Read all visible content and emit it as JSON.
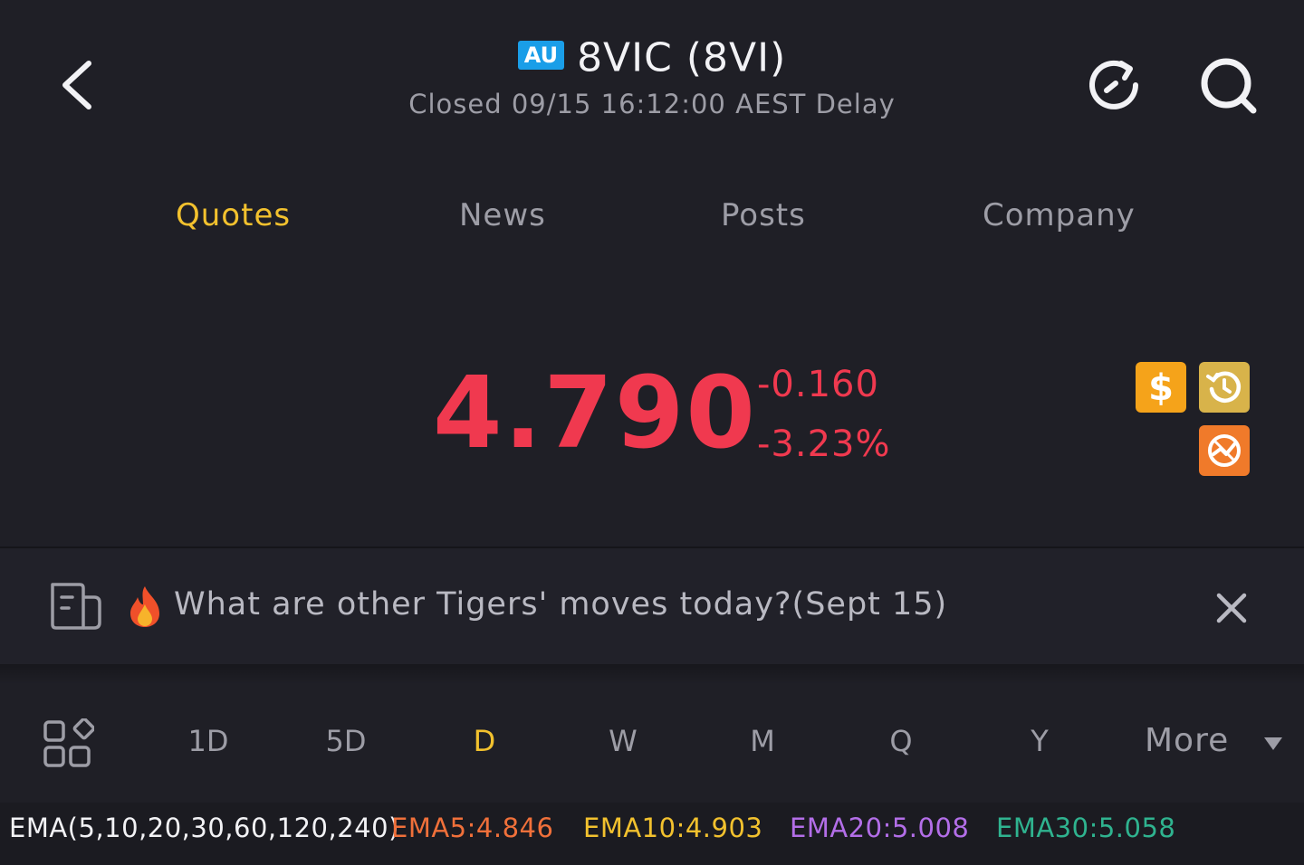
{
  "header": {
    "market_badge": "AU",
    "title": "8VIC (8VI)",
    "status": "Closed 09/15 16:12:00 AEST Delay",
    "back_icon": "chevron-left-icon",
    "refresh_icon": "refresh-icon",
    "search_icon": "search-icon"
  },
  "tabs": [
    {
      "label": "Quotes",
      "active": true
    },
    {
      "label": "News",
      "active": false
    },
    {
      "label": "Posts",
      "active": false
    },
    {
      "label": "Company",
      "active": false
    }
  ],
  "quote": {
    "price": "4.790",
    "change": "-0.160",
    "change_pct": "-3.23%",
    "color_down": "#f0394f"
  },
  "quick_actions": [
    {
      "icon": "dollar-icon",
      "color": "#f5a31a"
    },
    {
      "icon": "history-icon",
      "color": "#d8b34a"
    },
    {
      "icon": "chart-analysis-icon",
      "color": "#f07a2a"
    }
  ],
  "banner": {
    "text": "What are other Tigers' moves today?(Sept 15)",
    "doc_icon": "document-icon",
    "fire_icon": "fire-icon",
    "close_icon": "close-icon"
  },
  "periods": {
    "items": [
      "1D",
      "5D",
      "D",
      "W",
      "M",
      "Q",
      "Y"
    ],
    "active": "D",
    "more_label": "More"
  },
  "ema": {
    "label": "EMA(5,10,20,30,60,120,240)",
    "values": [
      {
        "text": "EMA5:4.846",
        "color": "#f0703a"
      },
      {
        "text": "EMA10:4.903",
        "color": "#f2c12e"
      },
      {
        "text": "EMA20:5.008",
        "color": "#b36ee8"
      },
      {
        "text": "EMA30:5.058",
        "color": "#2fb38f"
      }
    ]
  }
}
